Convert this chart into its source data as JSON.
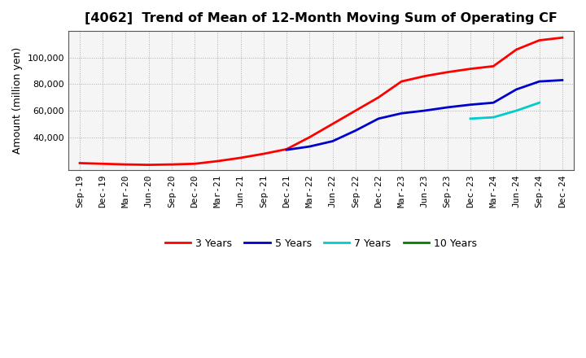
{
  "title": "[4062]  Trend of Mean of 12-Month Moving Sum of Operating CF",
  "ylabel": "Amount (million yen)",
  "background_color": "#ffffff",
  "plot_bg_color": "#f5f5f5",
  "grid_color": "#999999",
  "title_fontsize": 11.5,
  "label_fontsize": 9,
  "tick_fontsize": 8,
  "x_labels": [
    "Sep-19",
    "Dec-19",
    "Mar-20",
    "Jun-20",
    "Sep-20",
    "Dec-20",
    "Mar-21",
    "Jun-21",
    "Sep-21",
    "Dec-21",
    "Mar-22",
    "Jun-22",
    "Sep-22",
    "Dec-22",
    "Mar-23",
    "Jun-23",
    "Sep-23",
    "Dec-23",
    "Mar-24",
    "Jun-24",
    "Sep-24",
    "Dec-24"
  ],
  "series_3y": {
    "label": "3 Years",
    "color": "#ff0000",
    "x": [
      0,
      1,
      2,
      3,
      4,
      5,
      6,
      7,
      8,
      9,
      10,
      11,
      12,
      13,
      14,
      15,
      16,
      17,
      18,
      19,
      20,
      21
    ],
    "y": [
      20500,
      20000,
      19500,
      19200,
      19500,
      20000,
      22000,
      24500,
      27500,
      31000,
      40000,
      50000,
      60000,
      70000,
      82000,
      86000,
      89000,
      91500,
      93500,
      106000,
      113000,
      115000
    ]
  },
  "series_5y": {
    "label": "5 Years",
    "color": "#0000cc",
    "x": [
      9,
      10,
      11,
      12,
      13,
      14,
      15,
      16,
      17,
      18,
      19,
      20,
      21
    ],
    "y": [
      30500,
      33000,
      37000,
      45000,
      54000,
      58000,
      60000,
      62500,
      64500,
      66000,
      76000,
      82000,
      83000
    ]
  },
  "series_7y": {
    "label": "7 Years",
    "color": "#00cccc",
    "x": [
      17,
      18,
      19,
      20
    ],
    "y": [
      54000,
      55000,
      60000,
      66000
    ]
  },
  "series_10y": {
    "label": "10 Years",
    "color": "#008000",
    "x": [],
    "y": []
  },
  "ylim": [
    15000,
    120000
  ],
  "yticks": [
    40000,
    60000,
    80000,
    100000
  ],
  "ytick_labels": [
    "40,000",
    "60,000",
    "80,000",
    "100,000"
  ]
}
